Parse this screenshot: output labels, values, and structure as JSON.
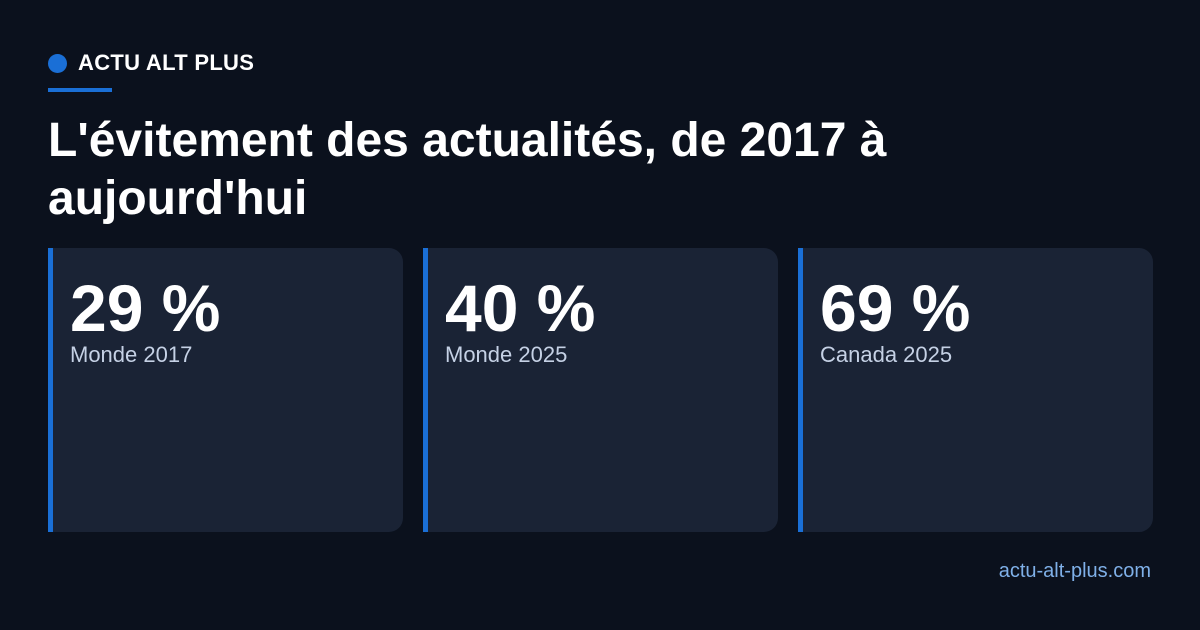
{
  "brand": "ACTU ALT PLUS",
  "title": "L'évitement des actualités, de 2017 à aujourd'hui",
  "cards": [
    {
      "value": "29 %",
      "label": "Monde 2017"
    },
    {
      "value": "40 %",
      "label": "Monde 2025"
    },
    {
      "value": "69 %",
      "label": "Canada 2025"
    }
  ],
  "footer": "actu-alt-plus.com"
}
